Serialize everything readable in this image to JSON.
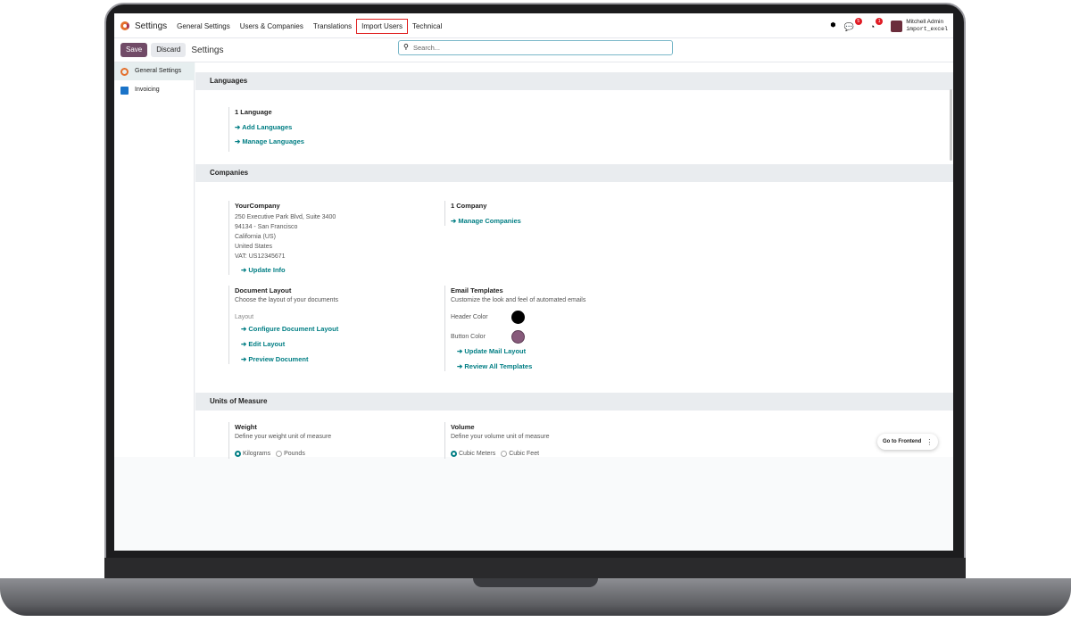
{
  "nav": {
    "app": "Settings",
    "menus": [
      "General Settings",
      "Users & Companies",
      "Translations",
      "Import Users",
      "Technical"
    ],
    "user": "Mitchell Admin",
    "db": "import_excel",
    "chat_badge": "5",
    "activity_badge": "1"
  },
  "control": {
    "save": "Save",
    "discard": "Discard",
    "title": "Settings",
    "search_placeholder": "Search..."
  },
  "sidebar": {
    "items": [
      {
        "label": "General Settings"
      },
      {
        "label": "Invoicing"
      }
    ]
  },
  "languages": {
    "header": "Languages",
    "count": "1 Language",
    "links": [
      "Add Languages",
      "Manage Languages"
    ]
  },
  "companies": {
    "header": "Companies",
    "name": "YourCompany",
    "address": [
      "250 Executive Park Blvd, Suite 3400",
      "94134 - San Francisco",
      "California (US)",
      "United States",
      "VAT:  US12345671"
    ],
    "update": "Update Info",
    "count": "1 Company",
    "manage": "Manage Companies",
    "doc_title": "Document Layout",
    "doc_desc": "Choose the layout of your documents",
    "layout_label": "Layout",
    "doc_links": [
      "Configure Document Layout",
      "Edit Layout",
      "Preview Document"
    ],
    "email_title": "Email Templates",
    "email_desc": "Customize the look and feel of automated emails",
    "header_color_label": "Header Color",
    "button_color_label": "Button Color",
    "header_color": "#000000",
    "button_color": "#875a7b",
    "email_links": [
      "Update Mail Layout",
      "Review All Templates"
    ]
  },
  "uom": {
    "header": "Units of Measure",
    "weight_title": "Weight",
    "weight_desc": "Define your weight unit of measure",
    "weight_options": [
      "Kilograms",
      "Pounds"
    ],
    "volume_title": "Volume",
    "volume_desc": "Define your volume unit of measure",
    "volume_options": [
      "Cubic Meters",
      "Cubic Feet"
    ]
  },
  "frontend": {
    "label": "Go to Frontend"
  },
  "colors": {
    "primary": "#714b67",
    "link": "#017e84"
  }
}
